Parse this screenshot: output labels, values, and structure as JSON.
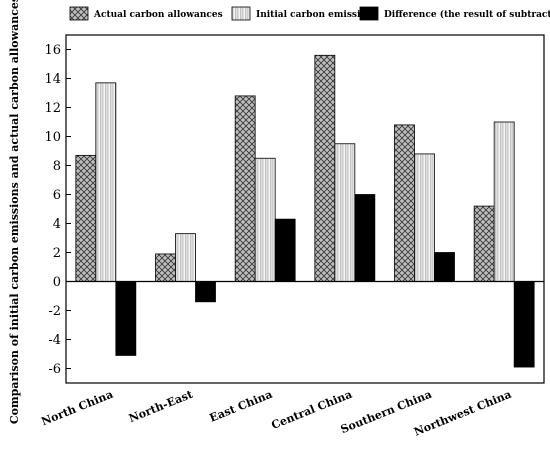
{
  "chart_data": {
    "type": "bar",
    "title": "",
    "xlabel": "",
    "ylabel": "Comparison of initial carbon emissions and actual carbon allowances",
    "categories": [
      "North China",
      "North-East",
      "East China",
      "Central China",
      "Southern China",
      "Northwest China"
    ],
    "series": [
      {
        "name": "Actual carbon allowances",
        "values": [
          8.7,
          1.9,
          12.8,
          15.6,
          10.8,
          5.2
        ],
        "pattern": "crosshatch",
        "color": "#b0b0b0"
      },
      {
        "name": "Initial carbon emissions",
        "values": [
          13.7,
          3.3,
          8.5,
          9.5,
          8.8,
          11.0
        ],
        "pattern": "vertical-gradient",
        "color": "#e6e6e6"
      },
      {
        "name": "Difference (the result of subtraction)",
        "values": [
          -5.1,
          -1.4,
          4.3,
          6.0,
          2.0,
          -5.9
        ],
        "pattern": "solid",
        "color": "#000000"
      }
    ],
    "ylim": [
      -7,
      17
    ],
    "yticks": [
      -6,
      -4,
      -2,
      0,
      2,
      4,
      6,
      8,
      10,
      12,
      14,
      16
    ],
    "grid": false,
    "legend_position": "top",
    "zero_line": true
  }
}
